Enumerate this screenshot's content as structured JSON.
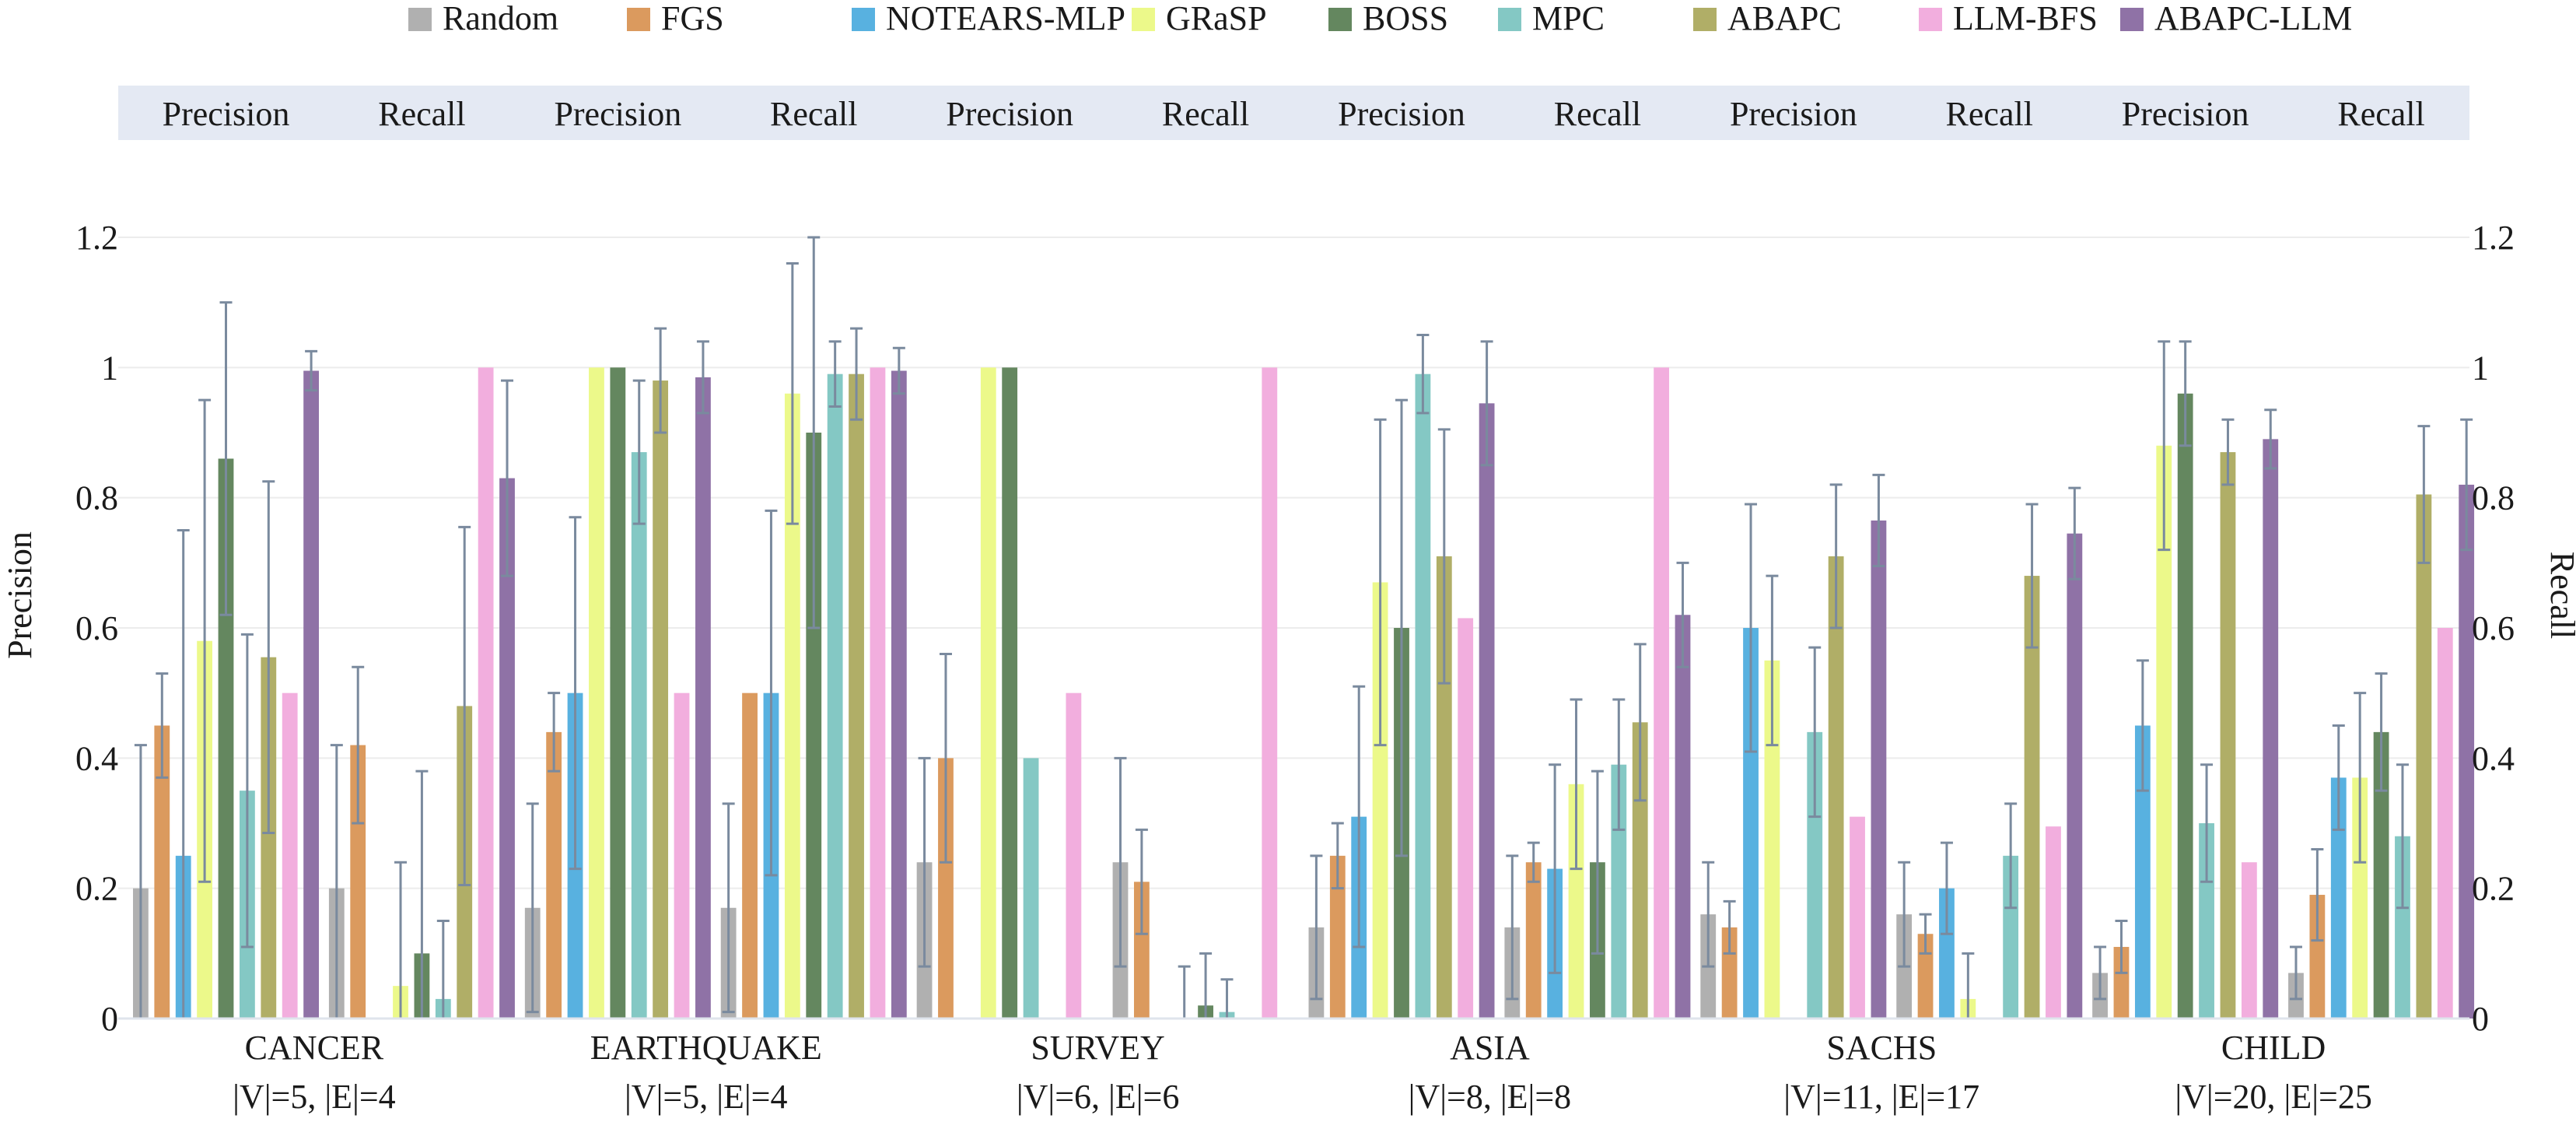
{
  "chart_data": {
    "type": "bar",
    "ylabel_left": "Precision",
    "ylabel_right": "Recall",
    "ylim": [
      0,
      1.2
    ],
    "yticks": [
      "0",
      "0.2",
      "0.4",
      "0.6",
      "0.8",
      "1",
      "1.2"
    ],
    "legend_position": "top-center",
    "grid": true,
    "metrics": [
      "Precision",
      "Recall"
    ],
    "header_labels": [
      "Precision",
      "Recall",
      "Precision",
      "Recall",
      "Precision",
      "Recall",
      "Precision",
      "Recall",
      "Precision",
      "Recall",
      "Precision",
      "Recall"
    ],
    "datasets": [
      {
        "name": "CANCER",
        "stats": "|V|=5, |E|=4"
      },
      {
        "name": "EARTHQUAKE",
        "stats": "|V|=5, |E|=4"
      },
      {
        "name": "SURVEY",
        "stats": "|V|=6, |E|=6"
      },
      {
        "name": "ASIA",
        "stats": "|V|=8, |E|=8"
      },
      {
        "name": "SACHS",
        "stats": "|V|=11, |E|=17"
      },
      {
        "name": "CHILD",
        "stats": "|V|=20, |E|=25"
      }
    ],
    "series": [
      {
        "name": "Random",
        "color": "#b0b0b0",
        "precision": [
          0.2,
          0.17,
          0.24,
          0.14,
          0.16,
          0.07
        ],
        "precision_err": [
          0.22,
          0.16,
          0.16,
          0.11,
          0.08,
          0.04
        ],
        "recall": [
          0.2,
          0.17,
          0.24,
          0.14,
          0.16,
          0.07
        ],
        "recall_err": [
          0.22,
          0.16,
          0.16,
          0.11,
          0.08,
          0.04
        ]
      },
      {
        "name": "FGS",
        "color": "#db9a5e",
        "precision": [
          0.45,
          0.44,
          0.4,
          0.25,
          0.14,
          0.11
        ],
        "precision_err": [
          0.08,
          0.06,
          0.16,
          0.05,
          0.04,
          0.04
        ],
        "recall": [
          0.42,
          0.5,
          0.21,
          0.24,
          0.13,
          0.19
        ],
        "recall_err": [
          0.12,
          0.0,
          0.08,
          0.03,
          0.03,
          0.07
        ]
      },
      {
        "name": "NOTEARS-MLP",
        "color": "#58b1e0",
        "precision": [
          0.25,
          0.5,
          0.0,
          0.31,
          0.6,
          0.45
        ],
        "precision_err": [
          0.5,
          0.27,
          0.0,
          0.2,
          0.19,
          0.1
        ],
        "recall": [
          0.0,
          0.5,
          0.0,
          0.23,
          0.2,
          0.37
        ],
        "recall_err": [
          0.0,
          0.28,
          0.0,
          0.16,
          0.07,
          0.08
        ]
      },
      {
        "name": "GRaSP",
        "color": "#ecf98a",
        "precision": [
          0.58,
          1.0,
          1.0,
          0.67,
          0.55,
          0.88
        ],
        "precision_err": [
          0.37,
          0.0,
          0.0,
          0.25,
          0.13,
          0.16
        ],
        "recall": [
          0.05,
          0.96,
          0.0,
          0.36,
          0.03,
          0.37
        ],
        "recall_err": [
          0.19,
          0.2,
          0.08,
          0.13,
          0.07,
          0.13
        ]
      },
      {
        "name": "BOSS",
        "color": "#64875f",
        "precision": [
          0.86,
          1.0,
          1.0,
          0.6,
          0.0,
          0.96
        ],
        "precision_err": [
          0.24,
          0.0,
          0.0,
          0.35,
          0.0,
          0.08
        ],
        "recall": [
          0.1,
          0.9,
          0.02,
          0.24,
          0.0,
          0.44
        ],
        "recall_err": [
          0.28,
          0.3,
          0.08,
          0.14,
          0.0,
          0.09
        ]
      },
      {
        "name": "MPC",
        "color": "#84c8c4",
        "precision": [
          0.35,
          0.87,
          0.4,
          0.99,
          0.44,
          0.3
        ],
        "precision_err": [
          0.24,
          0.11,
          0.0,
          0.06,
          0.13,
          0.09
        ],
        "recall": [
          0.03,
          0.99,
          0.01,
          0.39,
          0.25,
          0.28
        ],
        "recall_err": [
          0.12,
          0.05,
          0.05,
          0.1,
          0.08,
          0.11
        ]
      },
      {
        "name": "ABAPC",
        "color": "#b0ae67",
        "precision": [
          0.555,
          0.98,
          0.0,
          0.71,
          0.71,
          0.87
        ],
        "precision_err": [
          0.27,
          0.08,
          0.0,
          0.195,
          0.11,
          0.05
        ],
        "recall": [
          0.48,
          0.99,
          0.0,
          0.455,
          0.68,
          0.805
        ],
        "recall_err": [
          0.275,
          0.07,
          0.0,
          0.12,
          0.11,
          0.105
        ]
      },
      {
        "name": "LLM-BFS",
        "color": "#f2aede",
        "precision": [
          0.5,
          0.5,
          0.5,
          0.615,
          0.31,
          0.24
        ],
        "precision_err": [
          0.0,
          0.0,
          0.0,
          0.0,
          0.0,
          0.0
        ],
        "recall": [
          1.0,
          1.0,
          1.0,
          1.0,
          0.295,
          0.6
        ],
        "recall_err": [
          0.0,
          0.0,
          0.0,
          0.0,
          0.0,
          0.0
        ]
      },
      {
        "name": "ABAPC-LLM",
        "color": "#8f72a6",
        "precision": [
          0.995,
          0.985,
          0.0,
          0.945,
          0.765,
          0.89
        ],
        "precision_err": [
          0.03,
          0.055,
          0.0,
          0.095,
          0.07,
          0.045
        ],
        "recall": [
          0.83,
          0.995,
          0.0,
          0.62,
          0.745,
          0.82
        ],
        "recall_err": [
          0.15,
          0.035,
          0.0,
          0.08,
          0.07,
          0.1
        ]
      }
    ]
  }
}
